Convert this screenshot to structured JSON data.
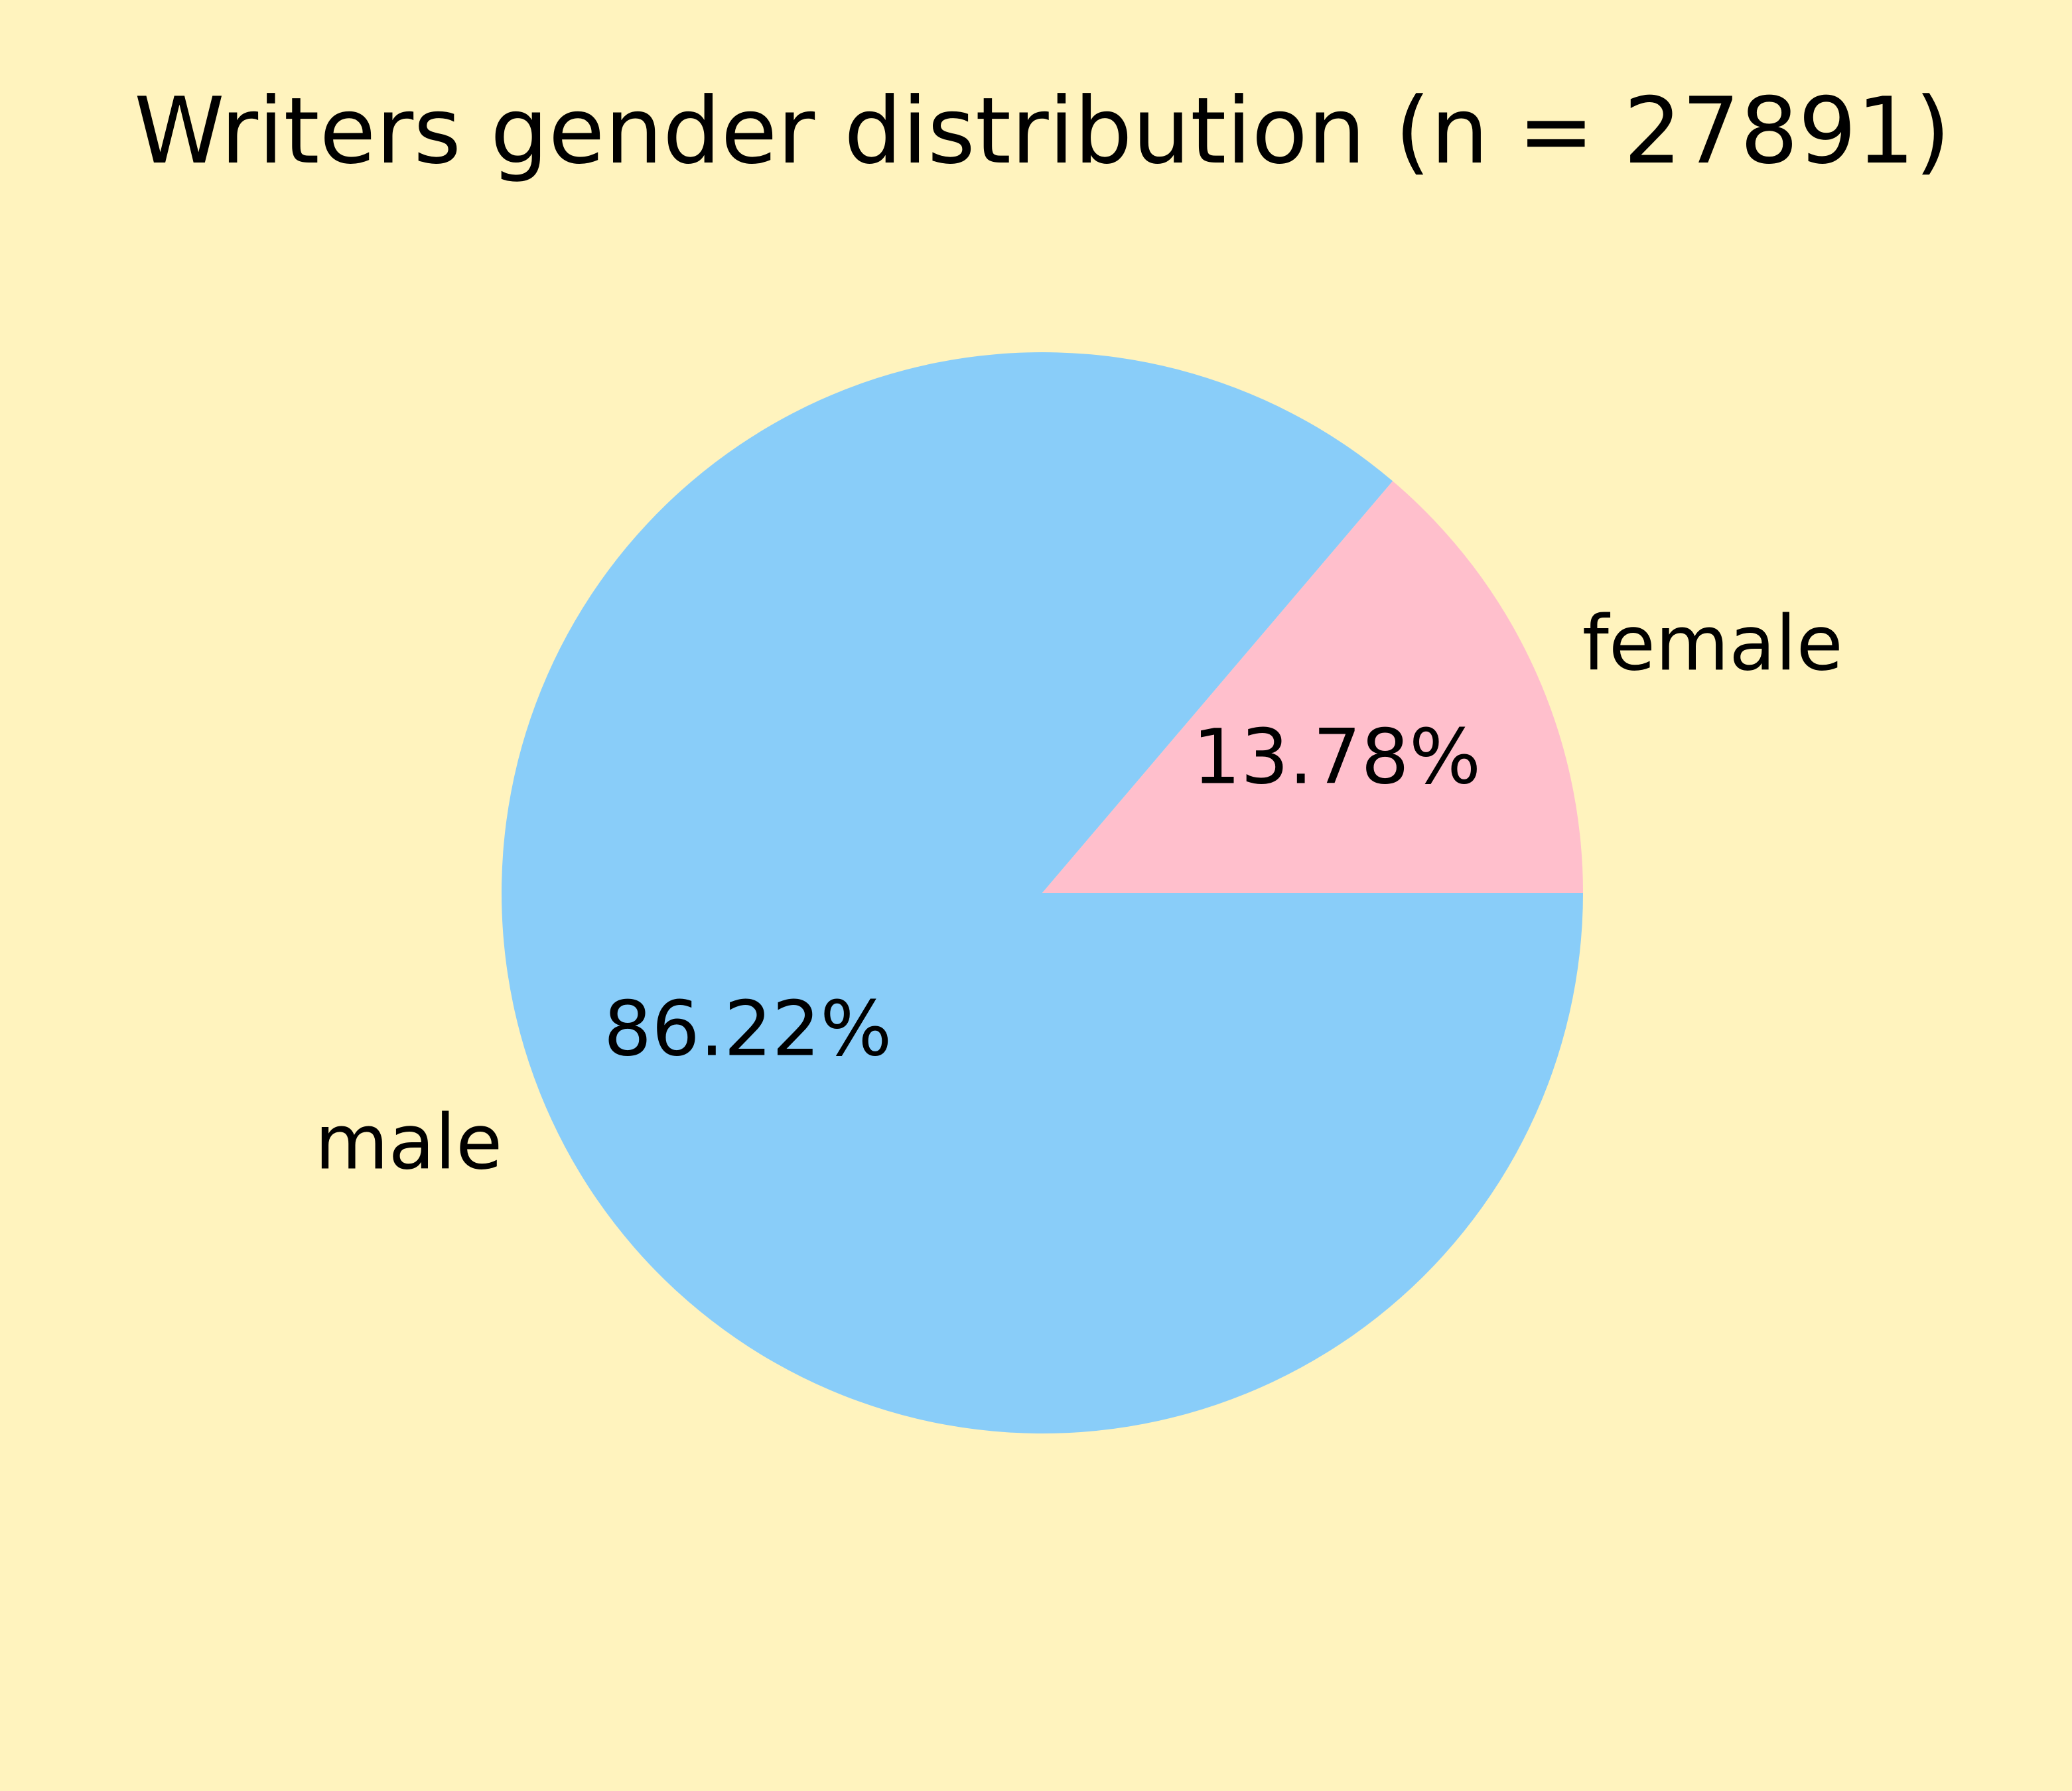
{
  "chart_data": {
    "type": "pie",
    "title": "Writers gender distribution (n = 27891)",
    "categories": [
      "male",
      "female"
    ],
    "values": [
      86.22,
      13.78
    ],
    "value_labels": [
      "86.22%",
      "13.78%"
    ],
    "colors": [
      "#89CDF9",
      "#FFBFCC"
    ],
    "background": "#FFF3BE",
    "start_angle_deg": 0,
    "direction": "clockwise"
  }
}
